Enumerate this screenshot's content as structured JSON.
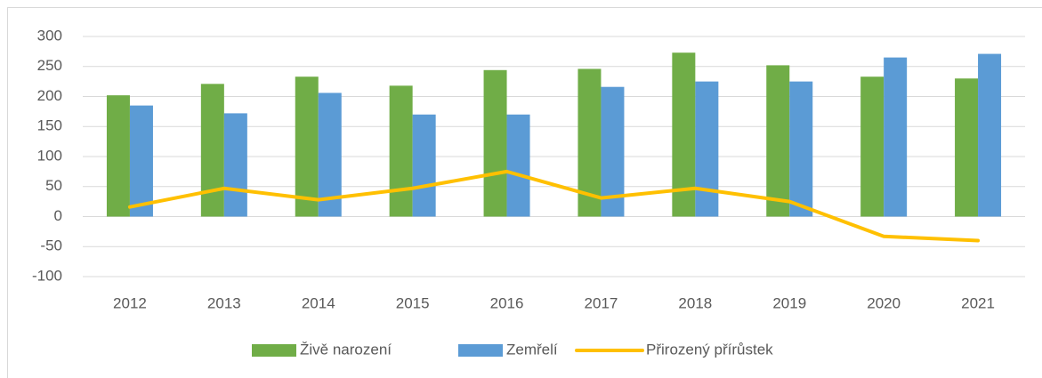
{
  "chart_data": {
    "type": "bar-line",
    "categories": [
      "2012",
      "2013",
      "2014",
      "2015",
      "2016",
      "2017",
      "2018",
      "2019",
      "2020",
      "2021"
    ],
    "series": [
      {
        "name": "Živě narození",
        "type": "bar",
        "color": "#70ad47",
        "values": [
          202,
          221,
          233,
          218,
          244,
          246,
          273,
          252,
          233,
          230
        ]
      },
      {
        "name": "Zemřelí",
        "type": "bar",
        "color": "#5b9bd5",
        "values": [
          185,
          172,
          206,
          170,
          170,
          216,
          225,
          225,
          265,
          271
        ]
      },
      {
        "name": "Přirozený přírůstek",
        "type": "line",
        "color": "#ffc000",
        "values": [
          16,
          47,
          28,
          47,
          75,
          31,
          47,
          25,
          -33,
          -40
        ]
      }
    ],
    "ylim": [
      -100,
      300
    ],
    "yticks": [
      -100,
      -50,
      0,
      50,
      100,
      150,
      200,
      250,
      300
    ],
    "grid": true,
    "legend": "bottom"
  }
}
